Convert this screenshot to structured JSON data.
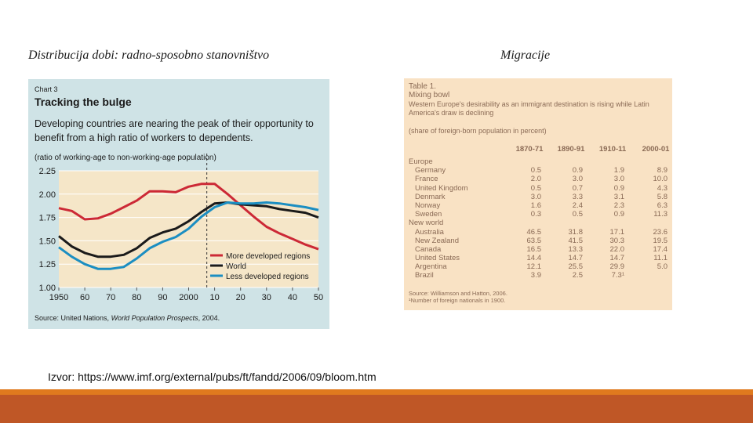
{
  "headings": {
    "left": "Distribucija dobi: radno-sposobno stanovništvo",
    "right": "Migracije"
  },
  "colors": {
    "panel_bg": "#cfe3e6",
    "plot_bg": "#f5e6c8",
    "more_developed": "#cc2936",
    "world": "#1a1a1a",
    "less_developed": "#1b8ec2",
    "table_bg": "#f9e2c4",
    "footer_orange": "#e07a1e",
    "footer_rust": "#bf5726"
  },
  "chart_data": [
    {
      "type": "line",
      "label": "Chart 3",
      "title": "Tracking the bulge",
      "subtitle": "Developing countries are nearing the peak of their opportunity to benefit from a high ratio of workers to dependents.",
      "ylabel": "(ratio of working-age to non-working-age population)",
      "xlabel": "",
      "x": [
        1950,
        1955,
        1960,
        1965,
        1970,
        1975,
        1980,
        1985,
        1990,
        1995,
        2000,
        2005,
        2010,
        2015,
        2020,
        2025,
        2030,
        2035,
        2040,
        2045,
        2050
      ],
      "xticks": [
        "1950",
        "60",
        "70",
        "80",
        "90",
        "2000",
        "10",
        "20",
        "30",
        "40",
        "50"
      ],
      "xtick_values": [
        1950,
        1960,
        1970,
        1980,
        1990,
        2000,
        2010,
        2020,
        2030,
        2040,
        2050
      ],
      "yticks": [
        "1.00",
        "1.25",
        "1.50",
        "1.75",
        "2.00",
        "2.25"
      ],
      "ylim": [
        1.0,
        2.25
      ],
      "xlim": [
        1950,
        2050
      ],
      "vline_x": 2007,
      "legend_position": "bottom-right",
      "series": [
        {
          "name": "More developed regions",
          "color": "#cc2936",
          "values": [
            1.85,
            1.82,
            1.73,
            1.74,
            1.79,
            1.86,
            1.93,
            2.03,
            2.03,
            2.02,
            2.08,
            2.11,
            2.11,
            2.0,
            1.88,
            1.76,
            1.65,
            1.58,
            1.52,
            1.46,
            1.41
          ]
        },
        {
          "name": "World",
          "color": "#1a1a1a",
          "values": [
            1.55,
            1.44,
            1.37,
            1.33,
            1.33,
            1.35,
            1.42,
            1.53,
            1.59,
            1.63,
            1.71,
            1.81,
            1.9,
            1.91,
            1.89,
            1.88,
            1.87,
            1.84,
            1.82,
            1.8,
            1.75
          ]
        },
        {
          "name": "Less developed regions",
          "color": "#1b8ec2",
          "values": [
            1.43,
            1.33,
            1.25,
            1.2,
            1.2,
            1.22,
            1.31,
            1.42,
            1.49,
            1.54,
            1.63,
            1.76,
            1.86,
            1.91,
            1.9,
            1.9,
            1.91,
            1.9,
            1.88,
            1.86,
            1.83
          ]
        }
      ],
      "source_prefix": "Source: United Nations, ",
      "source_title": "World Population Prospects",
      "source_suffix": ", 2004."
    },
    {
      "type": "table",
      "label": "Table 1.",
      "title": "Mixing bowl",
      "subtitle": "Western Europe's desirability as an immigrant destination is rising while Latin America's draw is declining",
      "unit": "(share of foreign-born population in percent)",
      "columns": [
        "1870-71",
        "1890-91",
        "1910-11",
        "2000-01"
      ],
      "rows": [
        {
          "label": "Europe",
          "indent": false,
          "values": [
            "",
            "",
            "",
            ""
          ]
        },
        {
          "label": "Germany",
          "indent": true,
          "values": [
            "0.5",
            "0.9",
            "1.9",
            "8.9"
          ]
        },
        {
          "label": "France",
          "indent": true,
          "values": [
            "2.0",
            "3.0",
            "3.0",
            "10.0"
          ]
        },
        {
          "label": "United Kingdom",
          "indent": true,
          "values": [
            "0.5",
            "0.7",
            "0.9",
            "4.3"
          ]
        },
        {
          "label": "Denmark",
          "indent": true,
          "values": [
            "3.0",
            "3.3",
            "3.1",
            "5.8"
          ]
        },
        {
          "label": "Norway",
          "indent": true,
          "values": [
            "1.6",
            "2.4",
            "2.3",
            "6.3"
          ]
        },
        {
          "label": "Sweden",
          "indent": true,
          "values": [
            "0.3",
            "0.5",
            "0.9",
            "11.3"
          ]
        },
        {
          "label": "New world",
          "indent": false,
          "values": [
            "",
            "",
            "",
            ""
          ]
        },
        {
          "label": "Australia",
          "indent": true,
          "values": [
            "46.5",
            "31.8",
            "17.1",
            "23.6"
          ]
        },
        {
          "label": "New Zealand",
          "indent": true,
          "values": [
            "63.5",
            "41.5",
            "30.3",
            "19.5"
          ]
        },
        {
          "label": "Canada",
          "indent": true,
          "values": [
            "16.5",
            "13.3",
            "22.0",
            "17.4"
          ]
        },
        {
          "label": "United States",
          "indent": true,
          "values": [
            "14.4",
            "14.7",
            "14.7",
            "11.1"
          ]
        },
        {
          "label": "Argentina",
          "indent": true,
          "values": [
            "12.1",
            "25.5",
            "29.9",
            "5.0"
          ]
        },
        {
          "label": "Brazil",
          "indent": true,
          "values": [
            "3.9",
            "2.5",
            "7.3¹",
            ""
          ]
        }
      ],
      "source": "Source: Williamson and Hatton, 2006.",
      "note": "¹Number of foreign nationals in 1900."
    }
  ],
  "footer": {
    "source": "Izvor: https://www.imf.org/external/pubs/ft/fandd/2006/09/bloom.htm"
  }
}
